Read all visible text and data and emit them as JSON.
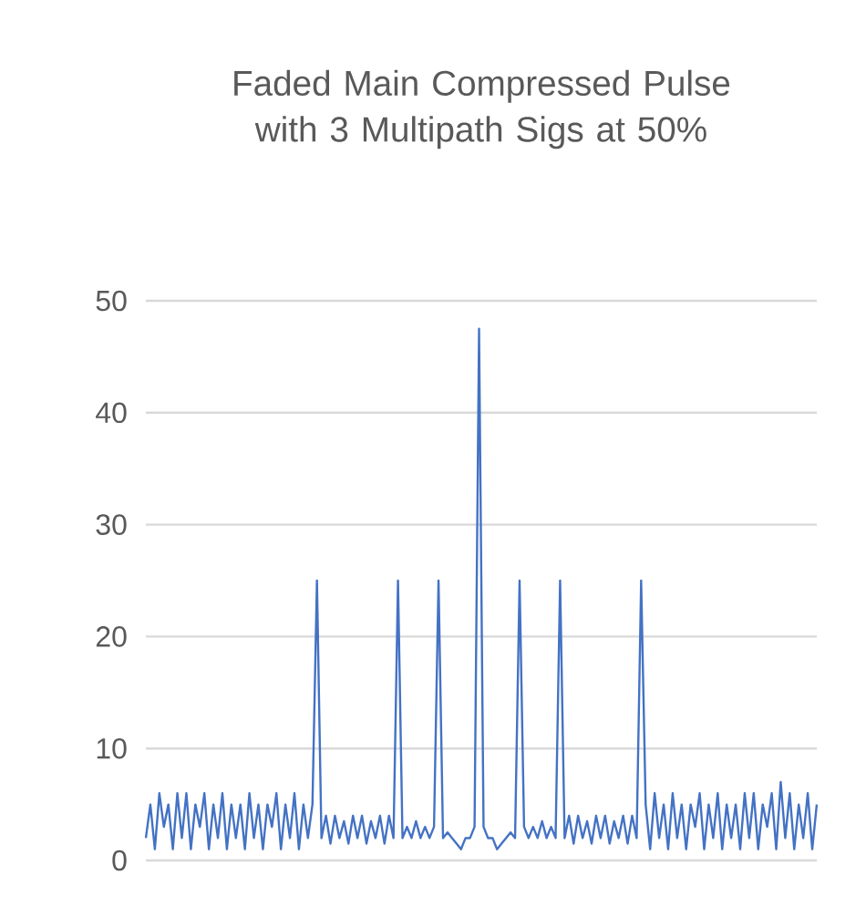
{
  "chart_data": {
    "type": "line",
    "title": "Faded Main Compressed Pulse with 3 Multipath Sigs at 50%",
    "categories": [
      null,
      null,
      null,
      null,
      null,
      null,
      null,
      null,
      null,
      null,
      null,
      null,
      null,
      null,
      null,
      null,
      null,
      null,
      null,
      null,
      null,
      null,
      null,
      null,
      null,
      null,
      null,
      null,
      null,
      null,
      null,
      null,
      null,
      null,
      null,
      null,
      null,
      null,
      null,
      null,
      null,
      null,
      null,
      null,
      null,
      null,
      null,
      null,
      null,
      null,
      null,
      null,
      null,
      null,
      null,
      null,
      null,
      null,
      null,
      null,
      null,
      null,
      null,
      null,
      null,
      null,
      null,
      null,
      null,
      null,
      null,
      null,
      null,
      null,
      null,
      null,
      null,
      null,
      null,
      null,
      null,
      null,
      null,
      null,
      null,
      null,
      null,
      null,
      null,
      null,
      null,
      null,
      null,
      null,
      null,
      null,
      null,
      null,
      null,
      null,
      null,
      null,
      null,
      null,
      null,
      null,
      null,
      null,
      null,
      null,
      null,
      null,
      null,
      null,
      null,
      null,
      null,
      null,
      null,
      null,
      null,
      null,
      null,
      null,
      null,
      null,
      null,
      null,
      null,
      null,
      null,
      null,
      null,
      null,
      null,
      null,
      null,
      null,
      null,
      null,
      null,
      null,
      null,
      null,
      null,
      null,
      null,
      null,
      null,
      null
    ],
    "series": [
      {
        "color": "#4472c4",
        "values": [
          2,
          5,
          1,
          6,
          3,
          5,
          1,
          6,
          2,
          6,
          1,
          5,
          3,
          6,
          1,
          5,
          2,
          6,
          1,
          5,
          2,
          5,
          1,
          6,
          2,
          5,
          1,
          5,
          3,
          6,
          1,
          5,
          2,
          6,
          1,
          5,
          2,
          5,
          25,
          2,
          4,
          1.5,
          4,
          2,
          3.5,
          1.5,
          4,
          2,
          4,
          1.5,
          3.5,
          2,
          4,
          1.5,
          4,
          2,
          25,
          2,
          3,
          2,
          3.5,
          2,
          3,
          2,
          3,
          25,
          2,
          2.5,
          2,
          1.5,
          1,
          2,
          2,
          3,
          47.5,
          3,
          2,
          2,
          1,
          1.5,
          2,
          2.5,
          2,
          25,
          3,
          2,
          3,
          2,
          3.5,
          2,
          3,
          2,
          25,
          2,
          4,
          1.5,
          4,
          2,
          3.5,
          1.5,
          4,
          2,
          4,
          1.5,
          3.5,
          2,
          4,
          1.5,
          4,
          2,
          25,
          5,
          1,
          6,
          2,
          5,
          1,
          6,
          2,
          5,
          1,
          5,
          3,
          6,
          1,
          5,
          2,
          6,
          1,
          5,
          2,
          5,
          1,
          6,
          2,
          6,
          1,
          5,
          3,
          6,
          1,
          7,
          2,
          6,
          1,
          5,
          2,
          6,
          1,
          5
        ]
      }
    ],
    "ylim": [
      0,
      50
    ],
    "yticks": [
      0,
      10,
      20,
      30,
      40,
      50
    ],
    "grid": "y",
    "marker": "none",
    "line_style": "solid"
  }
}
